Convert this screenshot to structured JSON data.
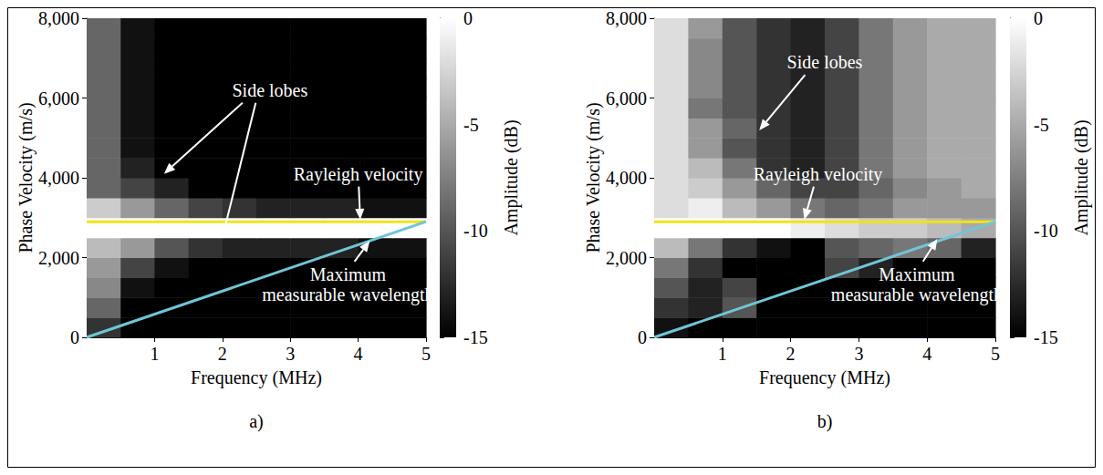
{
  "chart_data": [
    {
      "type": "heatmap",
      "title": "a)",
      "x_label": "Frequency (MHz)",
      "y_label": "Phase Velocity (m/s)",
      "xlim": [
        0,
        5
      ],
      "xticks": [
        1,
        2,
        3,
        4,
        5
      ],
      "ylim": [
        0,
        8000
      ],
      "yticks": [
        0,
        2000,
        4000,
        6000,
        8000
      ],
      "heatmap": {
        "x": [
          0.25,
          0.75,
          1.25,
          1.75,
          2.25,
          2.75,
          3.25,
          3.75,
          4.25,
          4.75
        ],
        "y": [
          250,
          750,
          1250,
          1750,
          2250,
          2750,
          3250,
          3750,
          4250,
          4750,
          5250,
          5750,
          6250,
          6750,
          7250,
          7750
        ],
        "z": [
          [
            -12,
            -15,
            -15,
            -15,
            -15,
            -15,
            -15,
            -15,
            -15,
            -15
          ],
          [
            -9,
            -15,
            -15,
            -15,
            -15,
            -15,
            -15,
            -15,
            -15,
            -15
          ],
          [
            -7,
            -14,
            -15,
            -15,
            -15,
            -15,
            -15,
            -15,
            -15,
            -15
          ],
          [
            -6,
            -11,
            -14,
            -15,
            -15,
            -15,
            -15,
            -15,
            -15,
            -15
          ],
          [
            -4,
            -6,
            -10,
            -12,
            -13,
            -13,
            -13,
            -13,
            -14,
            -14
          ],
          [
            0,
            0,
            0,
            0,
            0,
            0,
            0,
            0,
            0,
            0
          ],
          [
            -3,
            -6,
            -9,
            -11,
            -12,
            -13,
            -13,
            -13,
            -14,
            -14
          ],
          [
            -9,
            -11,
            -13,
            -15,
            -15,
            -15,
            -15,
            -15,
            -15,
            -15
          ],
          [
            -9,
            -13,
            -15,
            -15,
            -15,
            -15,
            -15,
            -15,
            -15,
            -15
          ],
          [
            -9,
            -14,
            -15,
            -15,
            -15,
            -15,
            -15,
            -15,
            -15,
            -15
          ],
          [
            -9,
            -14,
            -15,
            -15,
            -15,
            -15,
            -15,
            -15,
            -15,
            -15
          ],
          [
            -9,
            -14,
            -15,
            -15,
            -15,
            -15,
            -15,
            -15,
            -15,
            -15
          ],
          [
            -9,
            -14,
            -15,
            -15,
            -15,
            -15,
            -15,
            -15,
            -15,
            -15
          ],
          [
            -9,
            -14,
            -15,
            -15,
            -15,
            -15,
            -15,
            -15,
            -15,
            -15
          ],
          [
            -9,
            -14,
            -15,
            -15,
            -15,
            -15,
            -15,
            -15,
            -15,
            -15
          ],
          [
            -9,
            -14,
            -15,
            -15,
            -15,
            -15,
            -15,
            -15,
            -15,
            -15
          ]
        ]
      },
      "colorbar": {
        "label": "Amplitude (dB)",
        "range": [
          -15,
          0
        ],
        "ticks": [
          0,
          -5,
          -10,
          -15
        ]
      },
      "series": [
        {
          "type": "line",
          "color": "#f2e21a",
          "x": [
            0,
            5
          ],
          "values": [
            2900,
            2900
          ]
        },
        {
          "type": "line",
          "color": "#6fc6d6",
          "x": [
            0,
            5
          ],
          "values": [
            0,
            2900
          ]
        }
      ],
      "annotations": [
        {
          "text": "Side lobes",
          "x": 2.7,
          "y": 6200,
          "arrows": [
            [
              1.14,
              4100
            ],
            [
              2.0,
              2500
            ]
          ]
        },
        {
          "text": "Rayleigh velocity",
          "x": 4.0,
          "y": 4100,
          "arrows": [
            [
              4.03,
              2950
            ]
          ]
        },
        {
          "text": "Maximum measurable wavelength",
          "x": 3.85,
          "y": 1330,
          "arrows": [
            [
              4.17,
              2420
            ]
          ]
        }
      ]
    },
    {
      "type": "heatmap",
      "title": "b)",
      "x_label": "Frequency (MHz)",
      "y_label": "Phase Velocity (m/s)",
      "xlim": [
        0,
        5
      ],
      "xticks": [
        1,
        2,
        3,
        4,
        5
      ],
      "ylim": [
        0,
        8000
      ],
      "yticks": [
        0,
        2000,
        4000,
        6000,
        8000
      ],
      "heatmap": {
        "x": [
          0.25,
          0.75,
          1.25,
          1.75,
          2.25,
          2.75,
          3.25,
          3.75,
          4.25,
          4.75
        ],
        "y": [
          250,
          750,
          1250,
          1750,
          2250,
          2750,
          3250,
          3750,
          4250,
          4750,
          5250,
          5750,
          6250,
          6750,
          7250,
          7750
        ],
        "z": [
          [
            -14,
            -15,
            -15,
            -15,
            -15,
            -15,
            -15,
            -15,
            -15,
            -15
          ],
          [
            -12,
            -13,
            -10,
            -15,
            -15,
            -15,
            -15,
            -15,
            -15,
            -15
          ],
          [
            -10,
            -13,
            -11,
            -15,
            -15,
            -15,
            -15,
            -15,
            -15,
            -15
          ],
          [
            -8,
            -12,
            -15,
            -15,
            -15,
            -11,
            -13,
            -15,
            -15,
            -15
          ],
          [
            -4,
            -8,
            -12,
            -14,
            -15,
            -10,
            -9,
            -8,
            -9,
            -13
          ],
          [
            0,
            0,
            0,
            0,
            -1,
            -2,
            -3,
            -3,
            -4,
            -5
          ],
          [
            -2,
            -1,
            -4,
            -6,
            -8,
            -9,
            -8,
            -6,
            -6,
            -6
          ],
          [
            -2,
            -3,
            -6,
            -9,
            -11,
            -11,
            -9,
            -7,
            -6,
            -5
          ],
          [
            -2,
            -4,
            -8,
            -12,
            -13,
            -11,
            -8,
            -6,
            -5,
            -5
          ],
          [
            -2,
            -6,
            -10,
            -12,
            -13,
            -11,
            -8,
            -6,
            -5,
            -5
          ],
          [
            -2,
            -6,
            -9,
            -12,
            -13,
            -11,
            -8,
            -6,
            -5,
            -5
          ],
          [
            -2,
            -8,
            -10,
            -12,
            -13,
            -11,
            -8,
            -6,
            -5,
            -5
          ],
          [
            -2,
            -7,
            -10,
            -12,
            -13,
            -11,
            -8,
            -6,
            -5,
            -5
          ],
          [
            -2,
            -7,
            -10,
            -12,
            -13,
            -11,
            -8,
            -6,
            -5,
            -5
          ],
          [
            -2,
            -7,
            -10,
            -12,
            -13,
            -11,
            -8,
            -6,
            -5,
            -5
          ],
          [
            -2,
            -6,
            -10,
            -12,
            -13,
            -11,
            -8,
            -6,
            -5,
            -5
          ]
        ]
      },
      "colorbar": {
        "label": "Amplitude (dB)",
        "range": [
          -15,
          0
        ],
        "ticks": [
          0,
          -5,
          -10,
          -15
        ]
      },
      "series": [
        {
          "type": "line",
          "color": "#f2e21a",
          "x": [
            0,
            5
          ],
          "values": [
            2900,
            2900
          ]
        },
        {
          "type": "line",
          "color": "#6fc6d6",
          "x": [
            0,
            5
          ],
          "values": [
            0,
            2900
          ]
        }
      ],
      "annotations": [
        {
          "text": "Side lobes",
          "x": 2.5,
          "y": 6900,
          "arrows": [
            [
              1.54,
              5190
            ]
          ]
        },
        {
          "text": "Rayleigh velocity",
          "x": 2.4,
          "y": 4100,
          "arrows": [
            [
              2.2,
              2950
            ]
          ]
        },
        {
          "text": "Maximum measurable wavelength",
          "x": 3.85,
          "y": 1330,
          "arrows": [
            [
              4.15,
              2470
            ]
          ]
        }
      ]
    }
  ]
}
